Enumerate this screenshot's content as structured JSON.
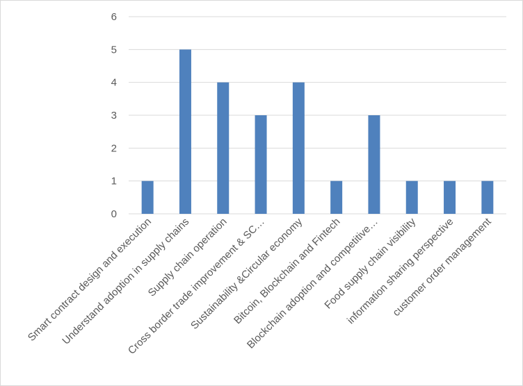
{
  "chart_data": {
    "type": "bar",
    "title": "",
    "xlabel": "",
    "ylabel": "",
    "ylim": [
      0,
      6
    ],
    "yticks": [
      0,
      1,
      2,
      3,
      4,
      5,
      6
    ],
    "grid": true,
    "legend": "none",
    "bar_color": "#4f81bd",
    "grid_color": "#d9d9d9",
    "categories": [
      "Smart contract design and execution",
      "Understand adoption in supply chains",
      "Supply chain operation",
      "Cross border trade improvement & SC…",
      "Sustainability &Circular economy",
      "Bitcoin, Blockchain and Fintech",
      "Blockchain adoption and competitive…",
      "Food supply chain visibility",
      "information sharing perspective",
      "customer order management"
    ],
    "values": [
      1,
      5,
      4,
      3,
      4,
      1,
      3,
      1,
      1,
      1
    ]
  }
}
